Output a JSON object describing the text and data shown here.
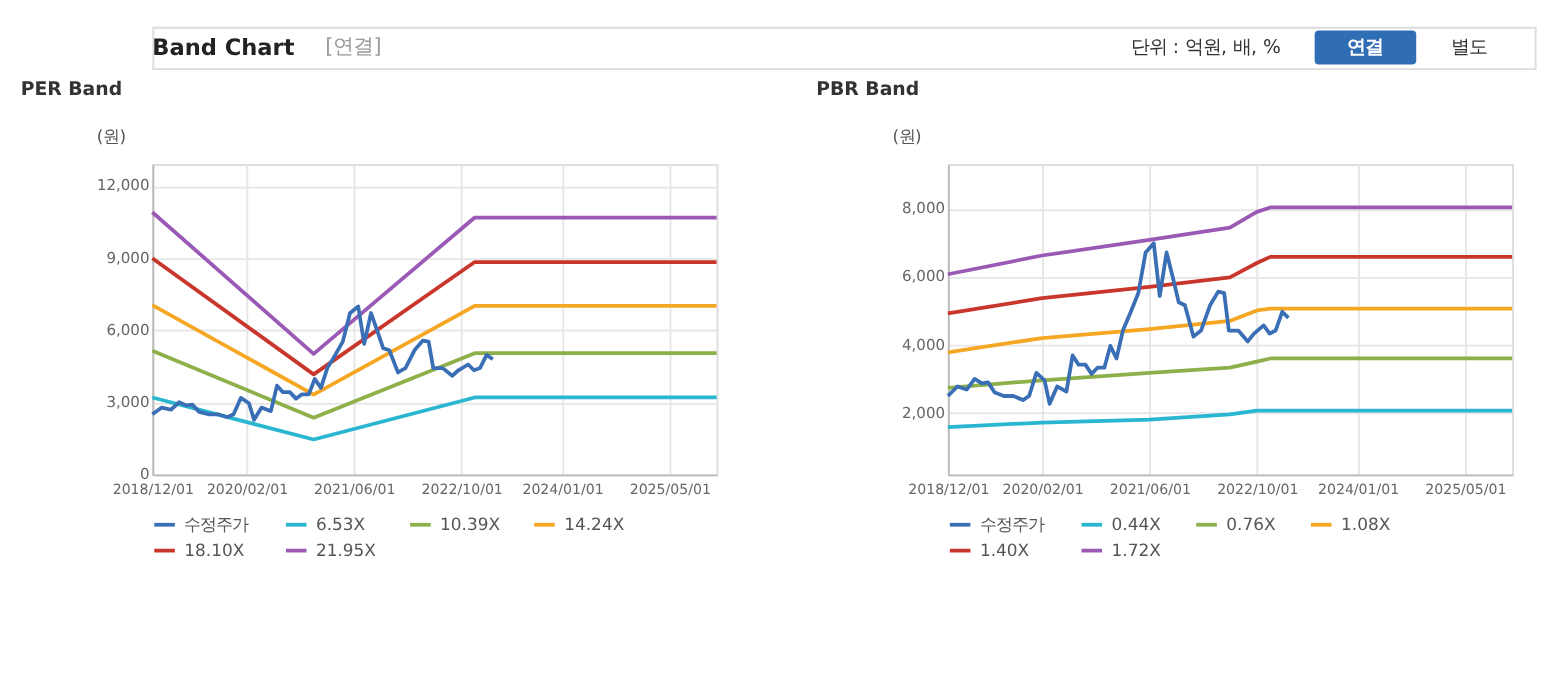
{
  "chart_data": [
    {
      "type": "line",
      "title": "PER Band",
      "ylabel": "(원)",
      "annotations": [
        "Band Chart",
        "[연결]",
        "단위 : 억원, 배, %",
        "연결",
        "별도"
      ],
      "xlim": [
        "2018-12-01",
        "2025-12-01"
      ],
      "xticks": [
        {
          "value": "2018-12-01",
          "label": "2018/12/01"
        },
        {
          "value": "2020-02-01",
          "label": "2020/02/01"
        },
        {
          "value": "2021-06-01",
          "label": "2021/06/01"
        },
        {
          "value": "2022-10-01",
          "label": "2022/10/01"
        },
        {
          "value": "2024-01-01",
          "label": "2024/01/01"
        },
        {
          "value": "2025-05-01",
          "label": "2025/05/01"
        }
      ],
      "ylim": [
        0,
        12900
      ],
      "yticks": [
        0,
        {
          "value": 3000,
          "label": "3,000"
        },
        {
          "value": 6000,
          "label": "6,000"
        },
        {
          "value": 9000,
          "label": "9,000"
        },
        {
          "value": 12000,
          "label": "12,000"
        }
      ],
      "grid": true,
      "legend": "bottom",
      "marker": "none",
      "line_style": "solid",
      "series": [
        {
          "name": "수정주가",
          "color": "#3a6fb5",
          "x": [
            "2018-12-01",
            "2019-01-13",
            "2019-02-24",
            "2019-04-01",
            "2019-05-04",
            "2019-06-01",
            "2019-07-01",
            "2019-08-12",
            "2019-09-24",
            "2019-11-06",
            "2019-12-04",
            "2020-01-06",
            "2020-02-12",
            "2020-03-06",
            "2020-04-09",
            "2020-05-21",
            "2020-06-18",
            "2020-07-15",
            "2020-08-15",
            "2020-09-12",
            "2020-10-09",
            "2020-11-09",
            "2020-12-06",
            "2021-01-03",
            "2021-02-01",
            "2021-03-09",
            "2021-04-12",
            "2021-05-15",
            "2021-06-21",
            "2021-07-18",
            "2021-08-18",
            "2021-09-15",
            "2021-10-12",
            "2021-11-09",
            "2021-12-18",
            "2022-01-21",
            "2022-03-03",
            "2022-04-09",
            "2022-05-06",
            "2022-05-27",
            "2022-07-09",
            "2022-08-21",
            "2022-09-18",
            "2022-11-01",
            "2022-11-28",
            "2022-12-25",
            "2023-01-24",
            "2023-02-21"
          ],
          "values": [
            2500,
            2780,
            2690,
            3000,
            2870,
            2900,
            2600,
            2500,
            2500,
            2380,
            2500,
            3180,
            2960,
            2270,
            2780,
            2630,
            3690,
            3420,
            3420,
            3150,
            3330,
            3330,
            3970,
            3600,
            4420,
            4970,
            5520,
            6710,
            6980,
            5430,
            6710,
            5980,
            5250,
            5160,
            4240,
            4420,
            5160,
            5560,
            5520,
            4420,
            4420,
            4100,
            4330,
            4570,
            4330,
            4420,
            4970,
            4790
          ]
        },
        {
          "name": "6.53X",
          "color": "#29b6d0",
          "x": [
            "2018-12-01",
            "2020-12-01",
            "2022-12-01",
            "2025-12-01"
          ],
          "values": [
            3200,
            1450,
            3200,
            3200
          ]
        },
        {
          "name": "10.39X",
          "color": "#8db04a",
          "x": [
            "2018-12-01",
            "2020-12-01",
            "2022-12-01",
            "2025-12-01"
          ],
          "values": [
            5140,
            2360,
            5040,
            5040
          ]
        },
        {
          "name": "14.24X",
          "color": "#f5a623",
          "x": [
            "2018-12-01",
            "2020-12-01",
            "2022-12-01",
            "2025-12-01"
          ],
          "values": [
            7040,
            3320,
            7010,
            7010
          ]
        },
        {
          "name": "18.10X",
          "color": "#c9362b",
          "x": [
            "2018-12-01",
            "2020-12-01",
            "2022-12-01",
            "2025-12-01"
          ],
          "values": [
            8990,
            4160,
            8830,
            8830
          ]
        },
        {
          "name": "21.95X",
          "color": "#9b59b6",
          "x": [
            "2018-12-01",
            "2020-12-01",
            "2022-12-01",
            "2025-12-01"
          ],
          "values": [
            10900,
            5010,
            10680,
            10680
          ]
        }
      ]
    },
    {
      "type": "line",
      "title": "PBR Band",
      "ylabel": "(원)",
      "xlim": [
        "2018-12-01",
        "2025-12-01"
      ],
      "xticks": [
        {
          "value": "2018-12-01",
          "label": "2018/12/01"
        },
        {
          "value": "2020-02-01",
          "label": "2020/02/01"
        },
        {
          "value": "2021-06-01",
          "label": "2021/06/01"
        },
        {
          "value": "2022-10-01",
          "label": "2022/10/01"
        },
        {
          "value": "2024-01-01",
          "label": "2024/01/01"
        },
        {
          "value": "2025-05-01",
          "label": "2025/05/01"
        }
      ],
      "ylim": [
        200,
        9300
      ],
      "yticks": [
        {
          "value": 2000,
          "label": "2,000"
        },
        {
          "value": 4000,
          "label": "4,000"
        },
        {
          "value": 6000,
          "label": "6,000"
        },
        {
          "value": 8000,
          "label": "8,000"
        }
      ],
      "grid": true,
      "legend": "bottom",
      "marker": "none",
      "line_style": "solid",
      "series": [
        {
          "name": "수정주가",
          "color": "#3a6fb5",
          "x": [
            "2018-12-01",
            "2019-01-13",
            "2019-02-24",
            "2019-04-01",
            "2019-05-04",
            "2019-06-01",
            "2019-07-01",
            "2019-08-12",
            "2019-09-24",
            "2019-11-06",
            "2019-12-04",
            "2020-01-06",
            "2020-02-12",
            "2020-03-06",
            "2020-04-09",
            "2020-05-21",
            "2020-06-18",
            "2020-07-15",
            "2020-08-15",
            "2020-09-12",
            "2020-10-09",
            "2020-11-09",
            "2020-12-06",
            "2021-01-03",
            "2021-02-01",
            "2021-03-09",
            "2021-04-12",
            "2021-05-15",
            "2021-06-21",
            "2021-07-18",
            "2021-08-18",
            "2021-09-15",
            "2021-10-12",
            "2021-11-09",
            "2021-12-18",
            "2022-01-21",
            "2022-03-03",
            "2022-04-09",
            "2022-05-06",
            "2022-05-27",
            "2022-07-09",
            "2022-08-21",
            "2022-09-18",
            "2022-11-01",
            "2022-11-28",
            "2022-12-25",
            "2023-01-24",
            "2023-02-21"
          ],
          "values": [
            2500,
            2780,
            2690,
            3000,
            2870,
            2900,
            2600,
            2500,
            2500,
            2380,
            2500,
            3180,
            2960,
            2270,
            2780,
            2630,
            3690,
            3420,
            3420,
            3150,
            3330,
            3330,
            3970,
            3600,
            4420,
            4970,
            5520,
            6710,
            6980,
            5430,
            6710,
            5980,
            5250,
            5160,
            4240,
            4420,
            5160,
            5560,
            5520,
            4420,
            4420,
            4100,
            4330,
            4570,
            4330,
            4420,
            4970,
            4790
          ]
        },
        {
          "name": "0.44X",
          "color": "#29b6d0",
          "x": [
            "2018-12-01",
            "2020-02-01",
            "2021-06-01",
            "2022-06-01",
            "2022-10-01",
            "2022-12-01",
            "2025-12-01"
          ],
          "values": [
            1590,
            1720,
            1810,
            1960,
            2070,
            2070,
            2070
          ]
        },
        {
          "name": "0.76X",
          "color": "#8db04a",
          "x": [
            "2018-12-01",
            "2020-02-01",
            "2021-06-01",
            "2022-06-01",
            "2022-10-01",
            "2022-12-01",
            "2025-12-01"
          ],
          "values": [
            2740,
            2960,
            3180,
            3330,
            3510,
            3600,
            3600
          ]
        },
        {
          "name": "1.08X",
          "color": "#f5a623",
          "x": [
            "2018-12-01",
            "2020-02-01",
            "2021-06-01",
            "2022-06-01",
            "2022-10-01",
            "2022-12-01",
            "2025-12-01"
          ],
          "values": [
            3780,
            4200,
            4460,
            4700,
            5010,
            5060,
            5060
          ]
        },
        {
          "name": "1.40X",
          "color": "#c9362b",
          "x": [
            "2018-12-01",
            "2020-02-01",
            "2021-06-01",
            "2022-06-01",
            "2022-10-01",
            "2022-12-01",
            "2025-12-01"
          ],
          "values": [
            4920,
            5370,
            5700,
            5980,
            6400,
            6580,
            6580
          ]
        },
        {
          "name": "1.72X",
          "color": "#9b59b6",
          "x": [
            "2018-12-01",
            "2020-02-01",
            "2021-06-01",
            "2022-06-01",
            "2022-10-01",
            "2022-12-01",
            "2025-12-01"
          ],
          "values": [
            6070,
            6620,
            7080,
            7440,
            7900,
            8030,
            8030
          ]
        }
      ]
    }
  ]
}
